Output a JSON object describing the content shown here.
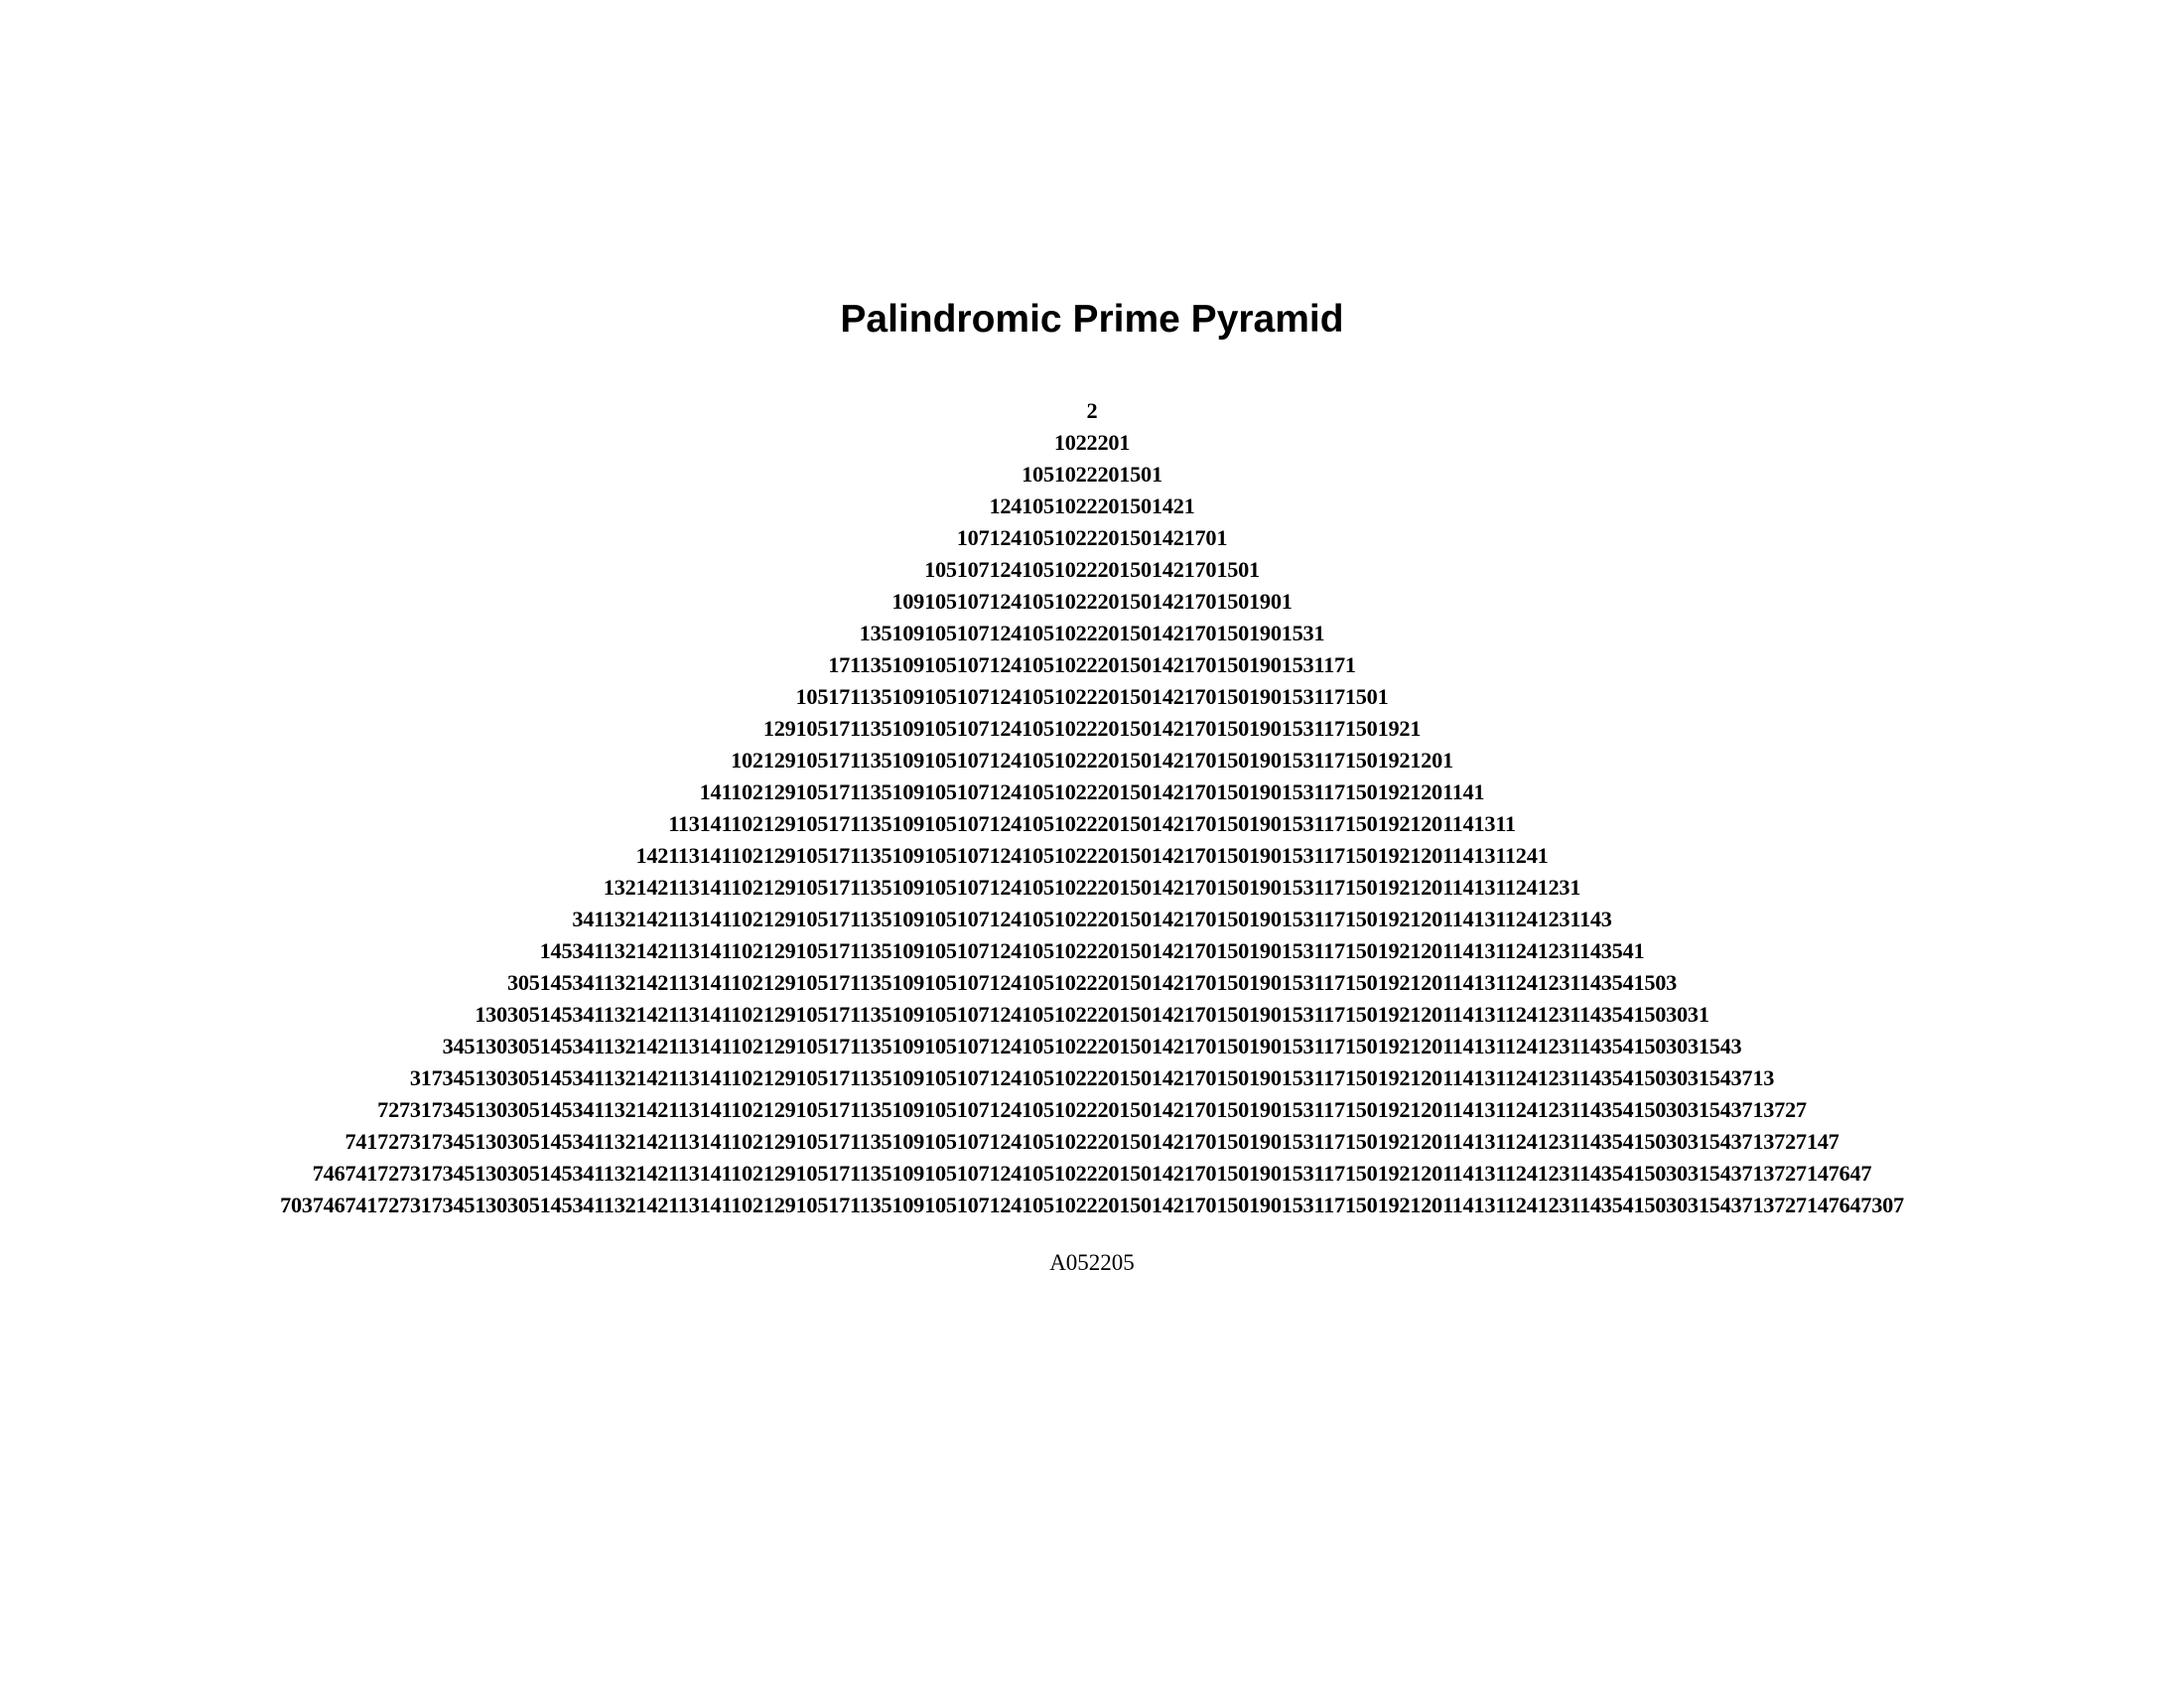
{
  "title": "Palindromic Prime Pyramid",
  "rows": [
    "2",
    "1022201",
    "1051022201501",
    "1241051022201501421",
    "1071241051022201501421701",
    "1051071241051022201501421701501",
    "1091051071241051022201501421701501901",
    "1351091051071241051022201501421701501901531",
    "1711351091051071241051022201501421701501901531171",
    "1051711351091051071241051022201501421701501901531171501",
    "1291051711351091051071241051022201501421701501901531171501921",
    "1021291051711351091051071241051022201501421701501901531171501921201",
    "1411021291051711351091051071241051022201501421701501901531171501921201141",
    "1131411021291051711351091051071241051022201501421701501901531171501921201141311",
    "1421131411021291051711351091051071241051022201501421701501901531171501921201141311241",
    "1321421131411021291051711351091051071241051022201501421701501901531171501921201141311241231",
    "3411321421131411021291051711351091051071241051022201501421701501901531171501921201141311241231143",
    "1453411321421131411021291051711351091051071241051022201501421701501901531171501921201141311241231143541",
    "3051453411321421131411021291051711351091051071241051022201501421701501901531171501921201141311241231143541503",
    "1303051453411321421131411021291051711351091051071241051022201501421701501901531171501921201141311241231143541503031",
    "3451303051453411321421131411021291051711351091051071241051022201501421701501901531171501921201141311241231143541503031543",
    "3173451303051453411321421131411021291051711351091051071241051022201501421701501901531171501921201141311241231143541503031543713",
    "7273173451303051453411321421131411021291051711351091051071241051022201501421701501901531171501921201141311241231143541503031543713727",
    "7417273173451303051453411321421131411021291051711351091051071241051022201501421701501901531171501921201141311241231143541503031543713727147",
    "7467417273173451303051453411321421131411021291051711351091051071241051022201501421701501901531171501921201141311241231143541503031543713727147647",
    "7037467417273173451303051453411321421131411021291051711351091051071241051022201501421701501901531171501921201141311241231143541503031543713727147647307"
  ],
  "sequence_id": "A052205"
}
